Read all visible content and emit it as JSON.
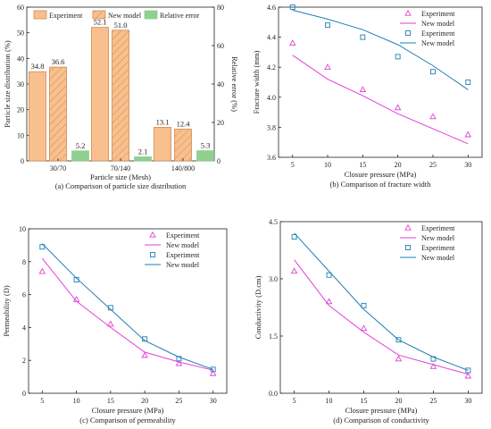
{
  "colors": {
    "bar_a": "#f8c08e",
    "bar_a_stroke": "#d08a50",
    "bar_b": "#f8c08e",
    "bar_b_stroke": "#d08a50",
    "bar_c": "#8fd08f",
    "tri": "#e33fd6",
    "line_a": "#e33fd6",
    "sq": "#1f7fb4",
    "line_b": "#1f7fb4"
  },
  "chart_data": [
    {
      "type": "bar",
      "caption": "(a) Comparison of  particle size distribution",
      "xlabel": "Particle size (Mesh)",
      "ylabel": "Particle size distribution (%)",
      "ylabel_right": "Relative error (%)",
      "categories": [
        "30/70",
        "70/140",
        "140/800"
      ],
      "ylim": [
        0,
        60
      ],
      "yticks": [
        0,
        10,
        20,
        30,
        40,
        50,
        60
      ],
      "ylim_right": [
        0,
        80
      ],
      "yticks_right": [
        0,
        20,
        40,
        60,
        80
      ],
      "legend": "top",
      "series": [
        {
          "name": "Experiment",
          "values": [
            34.8,
            52.1,
            13.1
          ],
          "labels": [
            "34.8",
            "52.1",
            "13.1"
          ]
        },
        {
          "name": "New model",
          "values": [
            36.6,
            51.0,
            12.4
          ],
          "labels": [
            "36.6",
            "51.0",
            "12.4"
          ]
        },
        {
          "name": "Relative error",
          "axis": "right",
          "values": [
            5.2,
            2.1,
            5.3
          ],
          "labels": [
            "5.2",
            "2.1",
            "5.3"
          ]
        }
      ]
    },
    {
      "type": "scatter+line",
      "caption": "(b) Comparison of  fracture width",
      "xlabel": "Closure pressure (MPa)",
      "ylabel": "Fracture width   (mm)",
      "x": [
        5,
        10,
        15,
        20,
        25,
        30
      ],
      "xlim": [
        3,
        32
      ],
      "ylim": [
        3.6,
        4.6
      ],
      "yticks": [
        "3.6",
        "3.8",
        "4.0",
        "4.2",
        "4.4",
        "4.6"
      ],
      "legend": "top-right",
      "series": [
        {
          "name": "Experiment",
          "kind": "triangle",
          "values": [
            4.36,
            4.2,
            4.05,
            3.93,
            3.87,
            3.75
          ]
        },
        {
          "name": "New model",
          "kind": "line",
          "values": [
            4.28,
            4.12,
            4.01,
            3.89,
            3.79,
            3.69
          ]
        },
        {
          "name": "Experiment",
          "kind": "square",
          "values": [
            4.6,
            4.48,
            4.4,
            4.27,
            4.17,
            4.1
          ]
        },
        {
          "name": "New model",
          "kind": "line",
          "values": [
            4.58,
            4.52,
            4.45,
            4.35,
            4.21,
            4.05
          ]
        }
      ]
    },
    {
      "type": "scatter+line",
      "caption": "(c) Comparison of permeability",
      "xlabel": "Closure pressure (MPa)",
      "ylabel": "Permeability (D)",
      "x": [
        5,
        10,
        15,
        20,
        25,
        30
      ],
      "xlim": [
        3,
        32
      ],
      "ylim": [
        0,
        10
      ],
      "yticks": [
        "0",
        "2",
        "4",
        "6",
        "8",
        "10"
      ],
      "legend": "top-right",
      "series": [
        {
          "name": "Experiment",
          "kind": "triangle",
          "values": [
            7.4,
            5.7,
            4.2,
            2.3,
            1.8,
            1.2
          ]
        },
        {
          "name": "New model",
          "kind": "line",
          "values": [
            8.2,
            5.6,
            4.0,
            2.5,
            1.9,
            1.4
          ]
        },
        {
          "name": "Experiment",
          "kind": "square",
          "values": [
            8.9,
            6.9,
            5.2,
            3.3,
            2.1,
            1.45
          ]
        },
        {
          "name": "New model",
          "kind": "line",
          "values": [
            9.1,
            7.0,
            5.1,
            3.2,
            2.2,
            1.45
          ]
        }
      ]
    },
    {
      "type": "scatter+line",
      "caption": "(d) Comparison of  conductivity",
      "xlabel": "Closure pressure (MPa)",
      "ylabel": "Conductivity (D.cm)",
      "x": [
        5,
        10,
        15,
        20,
        25,
        30
      ],
      "xlim": [
        3,
        32
      ],
      "ylim": [
        0,
        4.5
      ],
      "yticks": [
        "0.0",
        "1.5",
        "3.0",
        "4.5"
      ],
      "legend": "top-right",
      "series": [
        {
          "name": "Experiment",
          "kind": "triangle",
          "values": [
            3.2,
            2.4,
            1.7,
            0.9,
            0.7,
            0.45
          ]
        },
        {
          "name": "New model",
          "kind": "line",
          "values": [
            3.5,
            2.3,
            1.6,
            1.0,
            0.75,
            0.5
          ]
        },
        {
          "name": "Experiment",
          "kind": "square",
          "values": [
            4.1,
            3.1,
            2.3,
            1.4,
            0.9,
            0.6
          ]
        },
        {
          "name": "New model",
          "kind": "line",
          "values": [
            4.2,
            3.2,
            2.2,
            1.4,
            0.95,
            0.6
          ]
        }
      ]
    }
  ]
}
